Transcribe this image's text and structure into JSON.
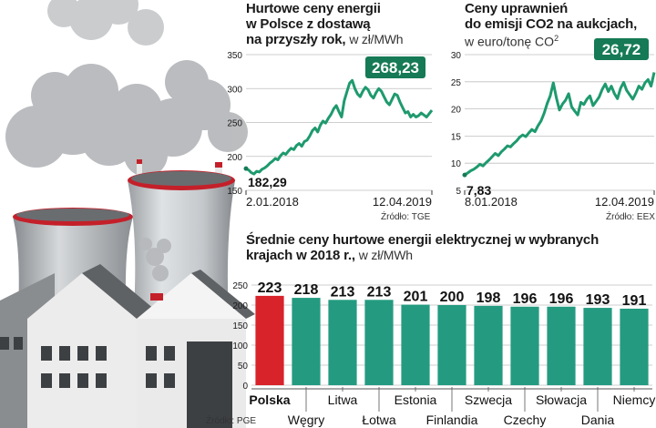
{
  "chart_data": [
    {
      "type": "line",
      "title_l1": "Hurtowe ceny energii",
      "title_l2": "w Polsce z dostawą",
      "title_l3": "na przyszły rok,",
      "unit": "w zł/MWh",
      "source": "Źródło: TGE",
      "x_start_label": "2.01.2018",
      "x_end_label": "12.04.2019",
      "ylim": [
        150,
        350
      ],
      "yticks": [
        "350",
        "300",
        "250",
        "200",
        "150"
      ],
      "start_value": 182.29,
      "start_label": "182,29",
      "end_value": 268.23,
      "end_label": "268,23",
      "values": [
        182,
        180,
        176,
        174,
        178,
        177,
        181,
        183,
        186,
        190,
        193,
        197,
        195,
        201,
        205,
        203,
        208,
        212,
        210,
        216,
        219,
        215,
        222,
        224,
        230,
        238,
        242,
        236,
        246,
        252,
        249,
        256,
        262,
        270,
        275,
        266,
        258,
        282,
        295,
        308,
        312,
        300,
        292,
        288,
        296,
        302,
        298,
        290,
        286,
        294,
        300,
        296,
        288,
        280,
        276,
        284,
        292,
        290,
        280,
        272,
        264,
        266,
        258,
        262,
        258,
        260,
        264,
        261,
        258,
        263,
        268
      ]
    },
    {
      "type": "line",
      "title_l1": "Ceny uprawnień",
      "title_l2": "do emisji CO2 na aukcjach,",
      "unit_prefix": "w euro/tonę CO",
      "unit_sup": "2",
      "source": "Źródło: EEX",
      "x_start_label": "8.01.2018",
      "x_end_label": "12.04.2019",
      "ylim": [
        5,
        30
      ],
      "yticks": [
        "30",
        "25",
        "20",
        "15",
        "10",
        "5"
      ],
      "start_value": 7.83,
      "start_label": "7,83",
      "end_value": 26.72,
      "end_label": "26,72",
      "values": [
        7.83,
        8.2,
        8.6,
        8.9,
        9.3,
        9.8,
        9.5,
        10.1,
        10.6,
        11.2,
        11.8,
        11.4,
        12.1,
        12.6,
        13.2,
        13.0,
        13.6,
        14.1,
        14.8,
        15.2,
        14.9,
        15.6,
        16.2,
        15.8,
        16.9,
        17.8,
        19.2,
        21.0,
        22.4,
        24.8,
        22.1,
        19.8,
        20.9,
        21.6,
        22.8,
        20.4,
        19.6,
        18.9,
        21.2,
        20.8,
        21.8,
        22.4,
        20.6,
        21.4,
        22.2,
        23.6,
        24.6,
        23.2,
        24.2,
        22.8,
        21.9,
        23.8,
        24.9,
        23.4,
        22.6,
        21.8,
        22.9,
        24.2,
        23.6,
        24.8,
        25.4,
        24.2,
        26.72
      ]
    },
    {
      "type": "bar",
      "title_l1": "Średnie ceny hurtowe energii elektrycznej w wybranych",
      "title_l2": "krajach w 2018 r.,",
      "unit": "w zł/MWh",
      "source": "Źródło: PGE",
      "ylim": [
        0,
        250
      ],
      "yticks": [
        "250",
        "200",
        "150",
        "100",
        "50",
        "0"
      ],
      "categories": [
        "Polska",
        "Węgry",
        "Litwa",
        "Łotwa",
        "Estonia",
        "Finlandia",
        "Szwecja",
        "Czechy",
        "Słowacja",
        "Dania",
        "Niemcy"
      ],
      "values": [
        223,
        218,
        213,
        213,
        201,
        200,
        198,
        196,
        196,
        193,
        191
      ],
      "value_labels": [
        "223",
        "218",
        "213",
        "213",
        "201",
        "200",
        "198",
        "196",
        "196",
        "193",
        "191"
      ]
    }
  ],
  "colors": {
    "line": "#1e9a6e",
    "line_dark": "#157a55",
    "highlight_bar": "#d8232a",
    "bar": "#249b81",
    "accent_red": "#c4202a",
    "grid": "#bfbfbf",
    "text": "#1a1a1a"
  },
  "illustration": {
    "subject": "power-plant-with-cooling-towers",
    "icon": "factory-icon"
  }
}
